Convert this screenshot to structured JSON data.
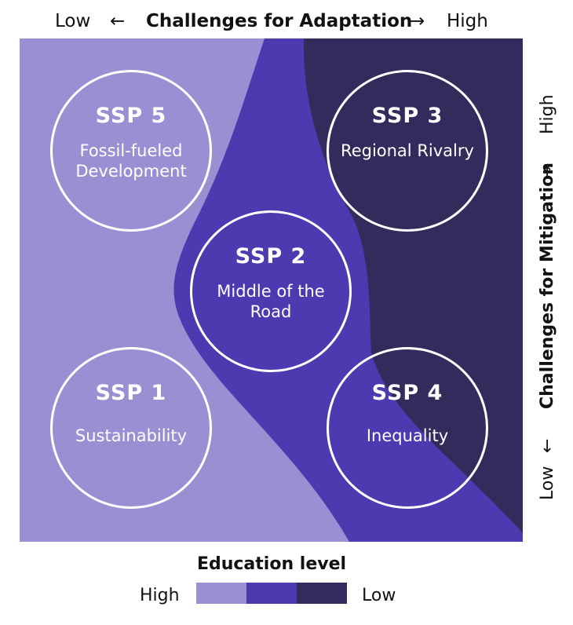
{
  "x_axis": {
    "low": "Low",
    "arrow_left": "←",
    "title": "Challenges for Adaptation",
    "arrow_right": "→",
    "high": "High"
  },
  "y_axis": {
    "low": "Low",
    "arrow_low": "←",
    "title": "Challenges for Mitigation",
    "arrow_high": "→",
    "high": "High"
  },
  "scenarios": {
    "ssp5": {
      "code": "SSP 5",
      "name": "Fossil-fueled Development"
    },
    "ssp3": {
      "code": "SSP 3",
      "name": "Regional Rivalry"
    },
    "ssp2": {
      "code": "SSP 2",
      "name": "Middle of the Road"
    },
    "ssp1": {
      "code": "SSP 1",
      "name": "Sustainability"
    },
    "ssp4": {
      "code": "SSP 4",
      "name": "Inequality"
    }
  },
  "legend": {
    "title": "Education level",
    "high_label": "High",
    "low_label": "Low"
  },
  "colors": {
    "education_high": "#9b8fd4",
    "education_mid": "#4b3ab0",
    "education_low": "#332b5c"
  }
}
